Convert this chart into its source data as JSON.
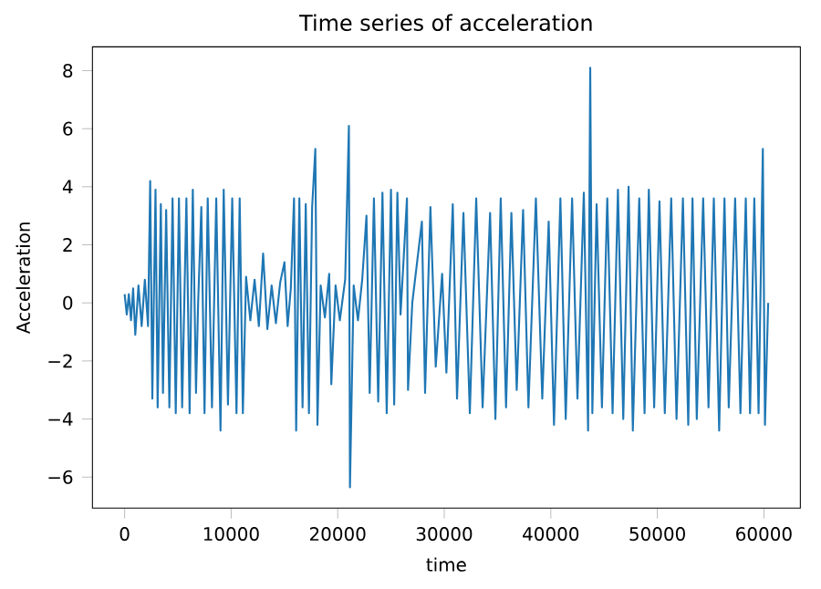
{
  "chart_data": {
    "type": "line",
    "title": "Time series of acceleration",
    "xlabel": "time",
    "ylabel": "Acceleration",
    "xlim": [
      -3020,
      63420
    ],
    "ylim": [
      -7.07,
      8.82
    ],
    "xticks": [
      0,
      10000,
      20000,
      30000,
      40000,
      50000,
      60000
    ],
    "yticks": [
      {
        "value": -6,
        "label": "−6"
      },
      {
        "value": -4,
        "label": "−4"
      },
      {
        "value": -2,
        "label": "−2"
      },
      0,
      2,
      4,
      6,
      8
    ],
    "grid": false,
    "marker": "none",
    "line_style": "solid",
    "x": [
      0,
      200,
      400,
      600,
      800,
      1000,
      1300,
      1600,
      1900,
      2200,
      2400,
      2600,
      2900,
      3100,
      3400,
      3600,
      3900,
      4200,
      4500,
      4800,
      5100,
      5400,
      5800,
      6100,
      6400,
      6700,
      6900,
      7200,
      7500,
      7800,
      8200,
      8600,
      9000,
      9300,
      9700,
      10100,
      10500,
      10800,
      11100,
      11400,
      11800,
      12200,
      12600,
      13000,
      13400,
      13800,
      14200,
      14600,
      15000,
      15300,
      15600,
      15900,
      16100,
      16400,
      16700,
      17000,
      17300,
      17600,
      17900,
      18100,
      18400,
      18800,
      19200,
      19400,
      19800,
      20200,
      20700,
      21050,
      21150,
      21500,
      21900,
      22300,
      22700,
      23000,
      23400,
      23800,
      24200,
      24600,
      25000,
      25300,
      25600,
      25900,
      26500,
      26600,
      27000,
      27900,
      28200,
      28700,
      29200,
      29800,
      30200,
      30800,
      31200,
      31800,
      32400,
      33000,
      33600,
      34300,
      34800,
      35300,
      35800,
      36300,
      36800,
      37400,
      37900,
      38600,
      39200,
      39800,
      40300,
      40900,
      41400,
      42000,
      42500,
      43100,
      43500,
      43700,
      43900,
      44300,
      44800,
      45300,
      45800,
      46300,
      46800,
      47300,
      47700,
      48300,
      48800,
      49200,
      49700,
      50200,
      50700,
      51300,
      51800,
      52400,
      52900,
      53300,
      53700,
      54300,
      54800,
      55300,
      55800,
      56300,
      56700,
      57300,
      57800,
      58300,
      58700,
      59100,
      59500,
      59900,
      60100,
      60400
    ],
    "series": [
      {
        "color": "#1f77b4",
        "values": [
          0.3,
          -0.4,
          0.3,
          -0.6,
          0.5,
          -1.1,
          0.6,
          -0.8,
          0.8,
          -0.8,
          4.2,
          -3.3,
          3.9,
          -3.6,
          3.4,
          -3.1,
          3.2,
          -3.6,
          3.6,
          -3.8,
          3.6,
          -3.6,
          3.6,
          -3.8,
          3.9,
          -3.1,
          0,
          3.3,
          -3.8,
          3.6,
          -3.6,
          3.6,
          -4.4,
          3.9,
          -3.5,
          3.6,
          -3.8,
          3.6,
          -3.8,
          0.9,
          -0.6,
          0.8,
          -0.8,
          1.7,
          -0.9,
          0.6,
          -0.7,
          0.7,
          1.4,
          -0.8,
          0.5,
          3.6,
          -4.4,
          3.6,
          -3.6,
          3.4,
          -3.8,
          3.3,
          5.3,
          -4.2,
          0.6,
          -0.5,
          1.0,
          -2.8,
          0.6,
          -0.6,
          0.8,
          6.1,
          -6.35,
          0.6,
          -0.6,
          0.8,
          3.0,
          -3.1,
          3.6,
          -3.4,
          3.8,
          -3.8,
          3.9,
          -3.5,
          3.8,
          -0.4,
          3.6,
          -3.0,
          0,
          2.8,
          -3.1,
          3.3,
          -2.2,
          1.0,
          -2.4,
          3.4,
          -3.3,
          3.1,
          -3.8,
          3.6,
          -3.6,
          3.1,
          -4.0,
          3.6,
          -3.6,
          3.1,
          -3.0,
          3.2,
          -3.6,
          3.6,
          -3.3,
          2.8,
          -4.2,
          3.6,
          -4.0,
          3.6,
          -3.3,
          3.8,
          -4.4,
          8.1,
          -3.8,
          3.4,
          -3.6,
          3.6,
          -3.8,
          3.9,
          -4.0,
          4.0,
          -4.4,
          3.6,
          -3.8,
          3.9,
          -3.6,
          3.5,
          -3.8,
          3.6,
          -4.0,
          3.6,
          -4.2,
          3.6,
          -4.0,
          3.6,
          -3.6,
          3.6,
          -4.4,
          3.6,
          -3.6,
          3.6,
          -3.8,
          3.6,
          -3.8,
          3.6,
          -3.8,
          5.3,
          -4.2,
          0
        ]
      }
    ]
  }
}
